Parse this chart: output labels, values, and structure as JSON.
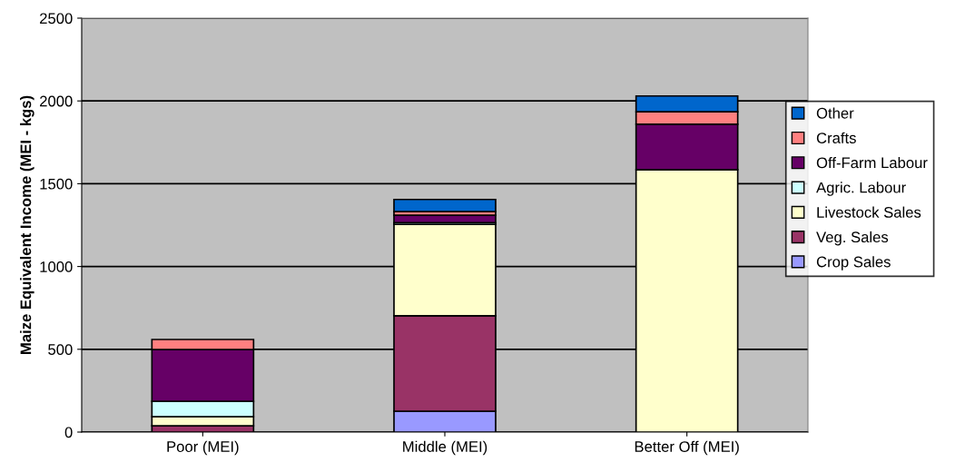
{
  "chart_data": {
    "type": "bar",
    "stacked": true,
    "ylabel": "Maize Equivalent Income (MEI - kgs)",
    "categories": [
      "Poor (MEI)",
      "Middle (MEI)",
      "Better Off (MEI)"
    ],
    "series": [
      {
        "name": "Crop Sales",
        "color": "#9999ff",
        "values": [
          0,
          126,
          0
        ]
      },
      {
        "name": "Veg. Sales",
        "color": "#993366",
        "values": [
          38,
          576,
          0
        ]
      },
      {
        "name": "Livestock Sales",
        "color": "#ffffcc",
        "values": [
          55,
          553,
          1585
        ]
      },
      {
        "name": "Agric. Labour",
        "color": "#ccffff",
        "values": [
          93,
          10,
          0
        ]
      },
      {
        "name": "Off-Farm Labour",
        "color": "#660066",
        "values": [
          313,
          45,
          274
        ]
      },
      {
        "name": "Crafts",
        "color": "#ff8080",
        "values": [
          60,
          22,
          76
        ]
      },
      {
        "name": "Other",
        "color": "#0066cc",
        "values": [
          0,
          73,
          95
        ]
      }
    ],
    "ylim": [
      0,
      2500
    ],
    "yticks": [
      0,
      500,
      1000,
      1500,
      2000,
      2500
    ],
    "grid": "y",
    "legend": "right"
  }
}
